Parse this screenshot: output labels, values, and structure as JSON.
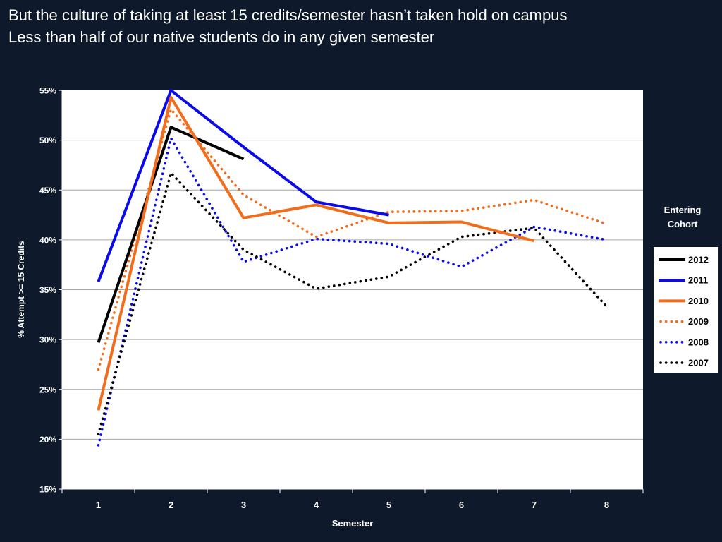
{
  "slide": {
    "title_line1": "But the culture of taking at least 15 credits/semester hasn’t taken hold on campus",
    "title_line2": "Less than half of our native students do in any given semester"
  },
  "colors": {
    "background": "#0e1a2b",
    "plot_background": "#ffffff",
    "gridline": "#a6a6a6",
    "black_series": "#000000",
    "blue_series": "#0b0bea",
    "orange_series": "#f26d1b"
  },
  "chart_data": {
    "type": "line",
    "xlabel": "Semester",
    "ylabel": "% Attempt >= 15 Credits",
    "x": [
      1,
      2,
      3,
      4,
      5,
      6,
      7,
      8
    ],
    "x_tick_labels": [
      "1",
      "2",
      "3",
      "4",
      "5",
      "6",
      "7",
      "8"
    ],
    "ylim": [
      15,
      55
    ],
    "y_ticks": [
      15,
      20,
      25,
      30,
      35,
      40,
      45,
      50,
      55
    ],
    "y_tick_labels": [
      "15%",
      "20%",
      "25%",
      "30%",
      "35%",
      "40%",
      "45%",
      "50%",
      "55%"
    ],
    "grid": "horizontal",
    "legend_title_line1": "Entering",
    "legend_title_line2": "Cohort",
    "legend_position": "right",
    "series": [
      {
        "name": "2012",
        "style": "solid",
        "color": "#000000",
        "values": [
          29.7,
          51.3,
          48.1,
          null,
          null,
          null,
          null,
          null
        ]
      },
      {
        "name": "2011",
        "style": "solid",
        "color": "#0b0bea",
        "values": [
          35.8,
          55.0,
          49.3,
          43.8,
          42.5,
          null,
          null,
          null
        ]
      },
      {
        "name": "2010",
        "style": "solid",
        "color": "#f26d1b",
        "values": [
          22.9,
          54.3,
          42.2,
          43.5,
          41.7,
          41.8,
          39.9,
          null
        ]
      },
      {
        "name": "2009",
        "style": "dotted",
        "color": "#f26d1b",
        "values": [
          27.0,
          53.1,
          44.5,
          40.3,
          42.8,
          42.9,
          44.0,
          41.6
        ]
      },
      {
        "name": "2008",
        "style": "dotted",
        "color": "#0b0bea",
        "values": [
          19.4,
          50.2,
          37.8,
          40.1,
          39.6,
          37.3,
          41.3,
          40.0
        ]
      },
      {
        "name": "2007",
        "style": "dotted",
        "color": "#000000",
        "values": [
          20.5,
          46.7,
          39.0,
          35.1,
          36.3,
          40.3,
          41.2,
          33.3
        ]
      }
    ]
  }
}
